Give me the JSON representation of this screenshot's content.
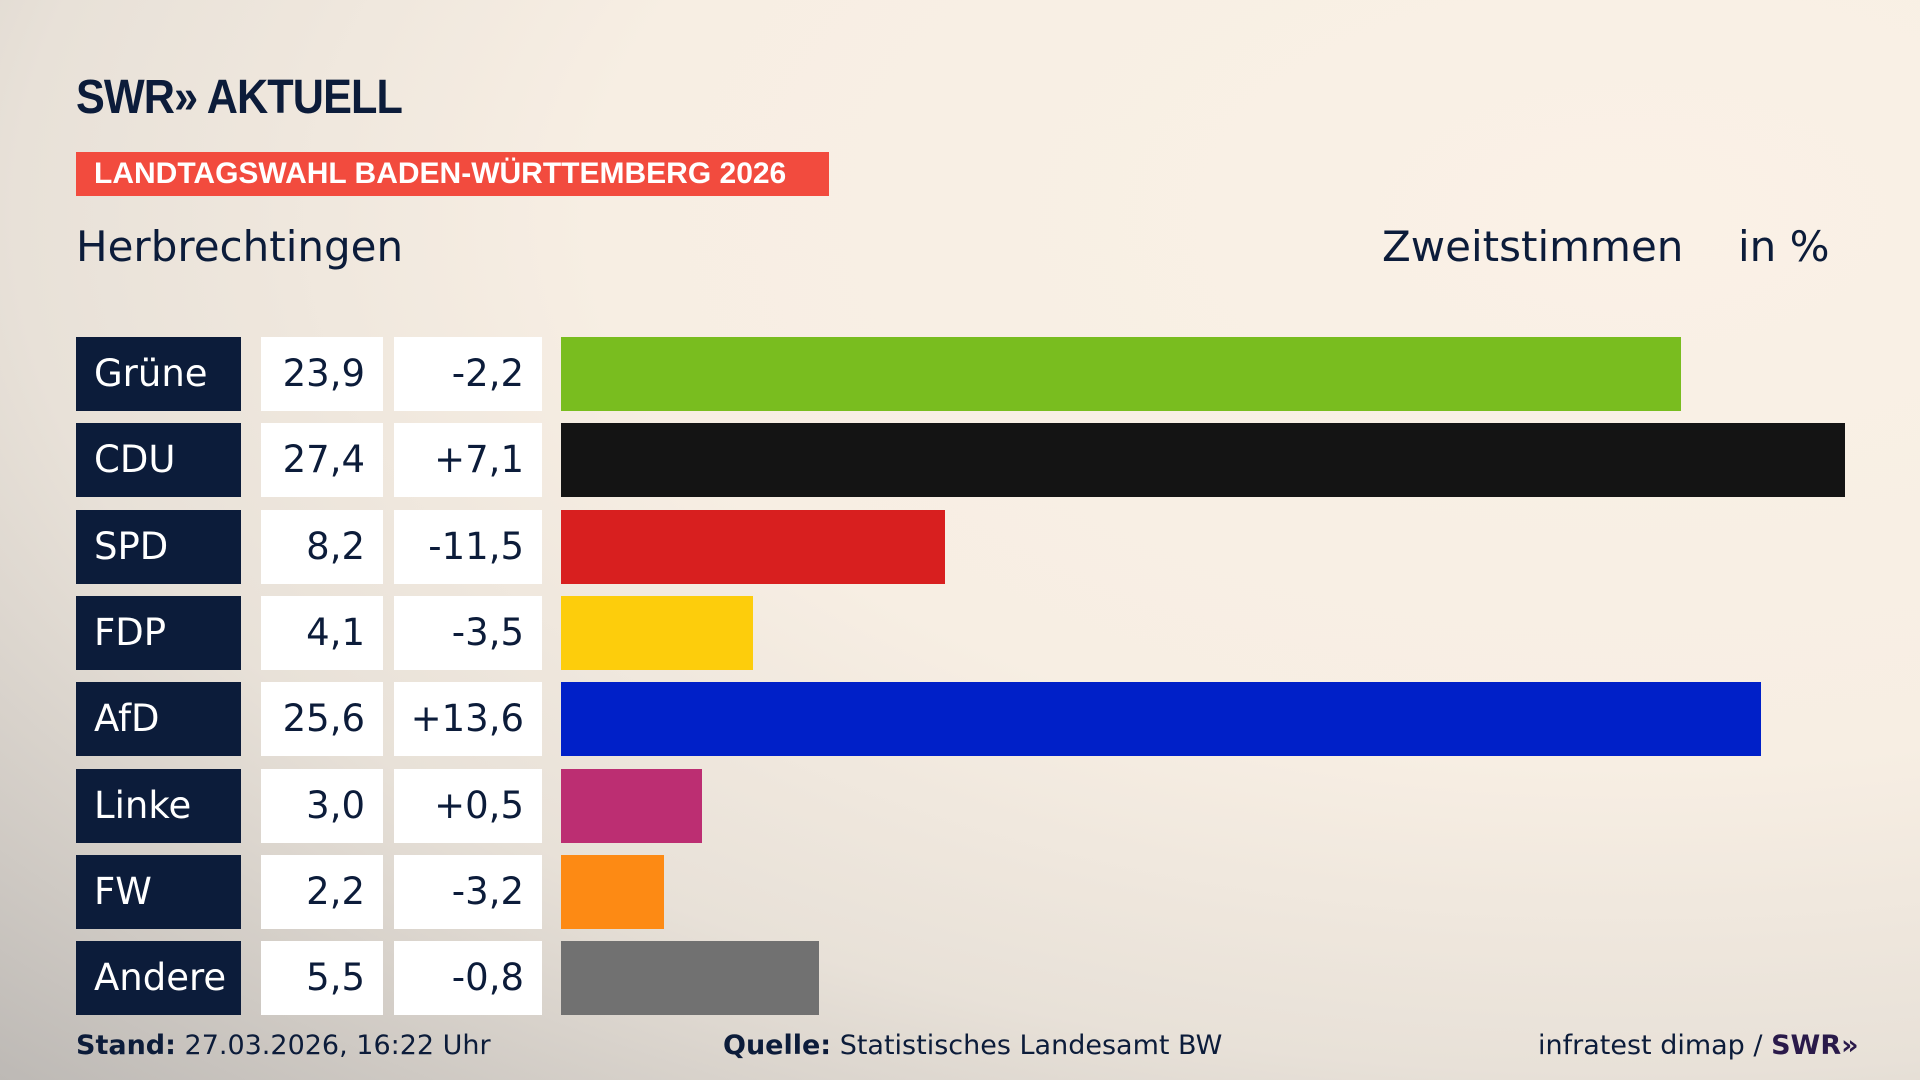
{
  "header": {
    "logo": "SWR» AKTUELL",
    "banner": "LANDTAGSWAHL BADEN-WÜRTTEMBERG 2026",
    "place": "Herbrechtingen",
    "vote_type": "Zweitstimmen",
    "unit": "in %"
  },
  "chart_data": {
    "type": "bar",
    "orientation": "horizontal",
    "xlim": [
      0,
      27.4
    ],
    "categories": [
      "Grüne",
      "CDU",
      "SPD",
      "FDP",
      "AfD",
      "Linke",
      "FW",
      "Andere"
    ],
    "values": [
      23.9,
      27.4,
      8.2,
      4.1,
      25.6,
      3.0,
      2.2,
      5.5
    ],
    "value_labels": [
      "23,9",
      "27,4",
      "8,2",
      "4,1",
      "25,6",
      "3,0",
      "2,2",
      "5,5"
    ],
    "diff_labels": [
      "-2,2",
      "+7,1",
      "-11,5",
      "-3,5",
      "+13,6",
      "+0,5",
      "-3,2",
      "-0,8"
    ],
    "colors": [
      "#79bd1f",
      "#141414",
      "#d81f1f",
      "#fdcd0c",
      "#0020c8",
      "#bc2e72",
      "#fd8a14",
      "#717171"
    ]
  },
  "footer": {
    "stand_label": "Stand:",
    "stand": "27.03.2026, 16:22 Uhr",
    "source_label": "Quelle:",
    "source": "Statistisches Landesamt BW",
    "credit": "infratest dimap /",
    "credit_logo": "SWR»"
  }
}
